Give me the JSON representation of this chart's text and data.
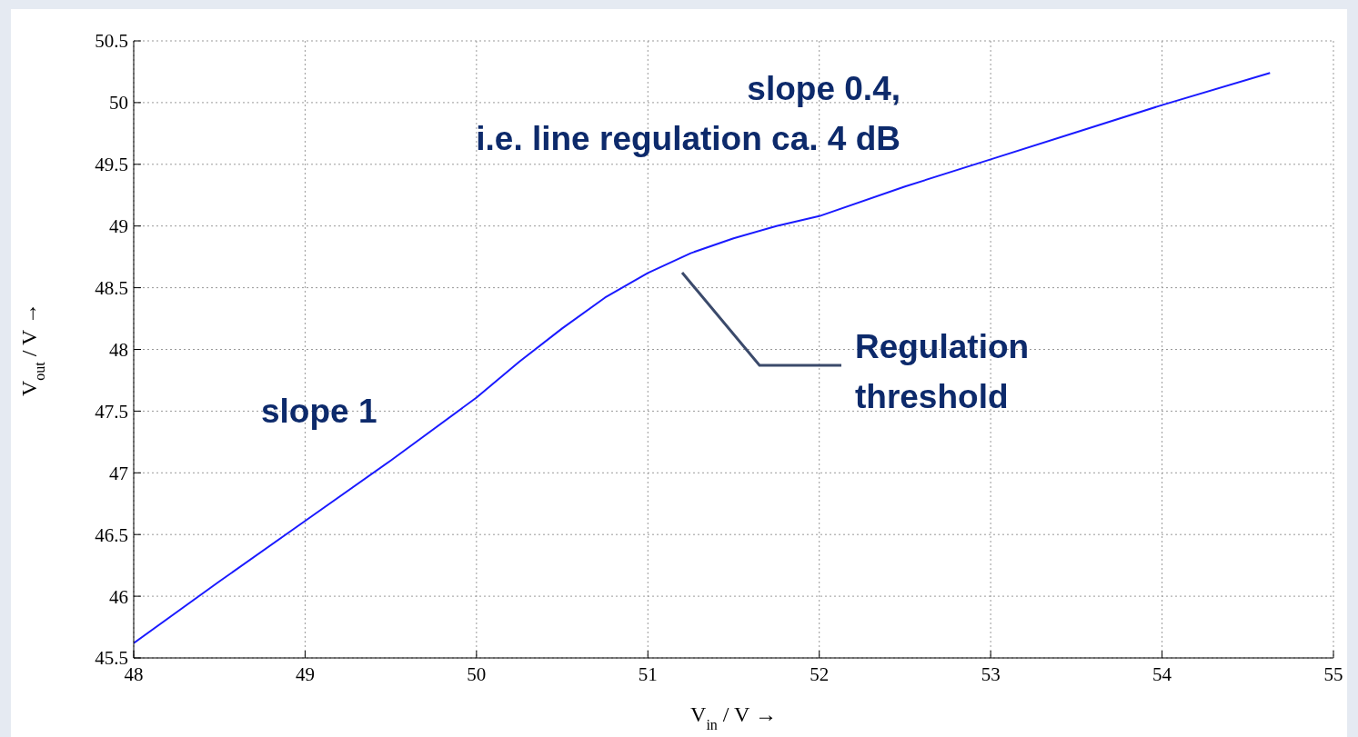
{
  "chart_data": {
    "type": "line",
    "xlabel": "V$_{in}$ / V  →",
    "ylabel": "V$_{out}$ / V  →",
    "x": [
      48,
      48.5,
      49,
      49.5,
      50,
      50.25,
      50.5,
      50.75,
      51,
      51.25,
      51.5,
      51.75,
      52,
      52.5,
      53,
      53.5,
      54,
      54.63
    ],
    "series": [
      {
        "color": "#1a1aff",
        "values": [
          45.62,
          46.12,
          46.61,
          47.1,
          47.61,
          47.9,
          48.17,
          48.42,
          48.62,
          48.78,
          48.9,
          49.0,
          49.08,
          49.32,
          49.54,
          49.76,
          49.98,
          50.24
        ]
      }
    ],
    "xlim": [
      48,
      55
    ],
    "xticks": [
      48,
      49,
      50,
      51,
      52,
      53,
      54,
      55
    ],
    "ylim": [
      45.5,
      50.5
    ],
    "yticks": [
      45.5,
      46,
      46.5,
      47,
      47.5,
      48,
      48.5,
      49,
      49.5,
      50,
      50.5
    ],
    "grid": true,
    "marker": "none",
    "line_style": "solid",
    "annotations": [
      "slope 1",
      "slope 0.4,\ni.e. line regulation ca. 4 dB",
      "Regulation\nthreshold"
    ]
  }
}
